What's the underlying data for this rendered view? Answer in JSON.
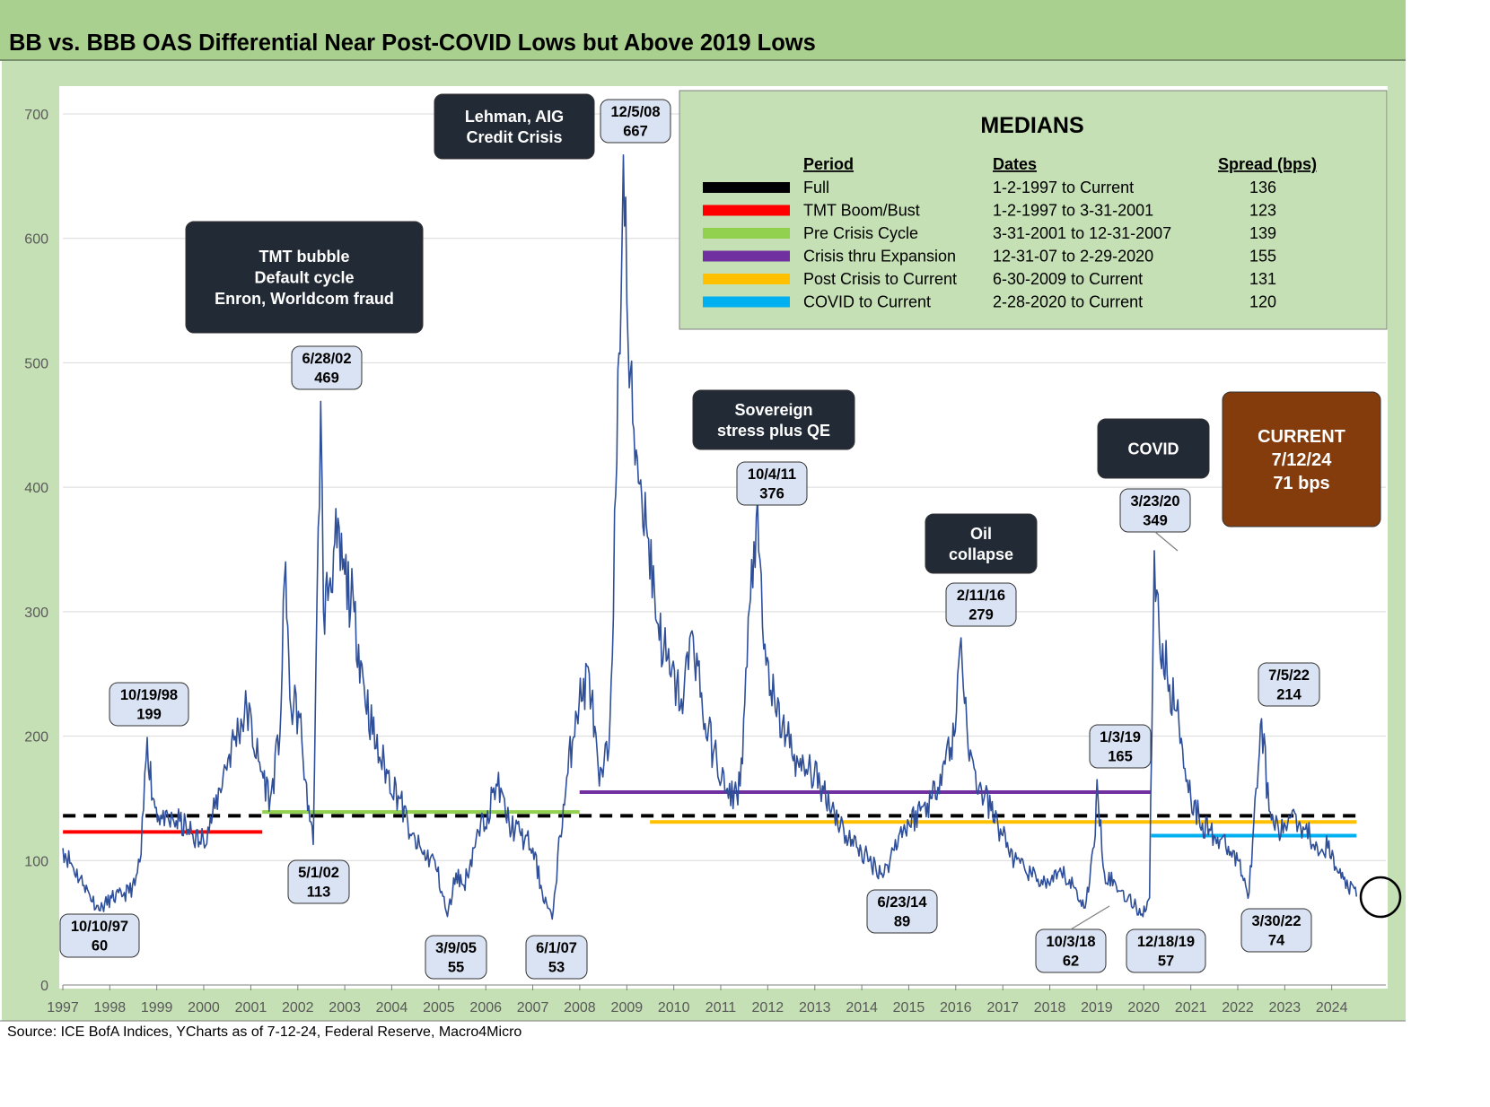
{
  "header": {
    "title": "BB vs. BBB OAS Differential Near Post-COVID Lows but Above 2019 Lows",
    "source": "Source: ICE BofA Indices, YCharts as of 7-12-24, Federal Reserve, Macro4Micro"
  },
  "colors": {
    "header_bg": "#a9d08e",
    "plot_bg": "#c5e0b4",
    "series": "#2f4f99",
    "dark_box": "#222a35",
    "label_box": "#dae3f3",
    "current_box": "#843c0c"
  },
  "chart_data": {
    "type": "line",
    "title": "BB vs. BBB OAS Differential Near Post-COVID Lows but Above 2019 Lows",
    "xlabel": "",
    "ylabel": "",
    "ylim": [
      0,
      700
    ],
    "yticks": [
      "0",
      "100",
      "200",
      "300",
      "400",
      "500",
      "600",
      "700"
    ],
    "xticks": [
      "1997",
      "1998",
      "1999",
      "2000",
      "2001",
      "2002",
      "2003",
      "2004",
      "2005",
      "2006",
      "2007",
      "2008",
      "2009",
      "2010",
      "2011",
      "2012",
      "2013",
      "2014",
      "2015",
      "2016",
      "2017",
      "2018",
      "2019",
      "2020",
      "2021",
      "2022",
      "2023",
      "2024"
    ],
    "grid": "horizontal",
    "series": [
      {
        "name": "",
        "color": "#2f4f99",
        "points": [
          [
            "1997-01-02",
            110
          ],
          [
            "1997-03-15",
            96
          ],
          [
            "1997-06-15",
            80
          ],
          [
            "1997-10-10",
            60
          ],
          [
            "1998-01-15",
            70
          ],
          [
            "1998-04-15",
            72
          ],
          [
            "1998-07-15",
            80
          ],
          [
            "1998-09-01",
            105
          ],
          [
            "1998-10-19",
            199
          ],
          [
            "1998-12-01",
            150
          ],
          [
            "1999-03-01",
            128
          ],
          [
            "1999-06-01",
            132
          ],
          [
            "1999-09-01",
            125
          ],
          [
            "1999-12-01",
            115
          ],
          [
            "2000-03-01",
            130
          ],
          [
            "2000-06-01",
            170
          ],
          [
            "2000-09-01",
            200
          ],
          [
            "2000-12-01",
            222
          ],
          [
            "2001-03-01",
            180
          ],
          [
            "2001-06-01",
            150
          ],
          [
            "2001-08-15",
            200
          ],
          [
            "2001-09-28",
            340
          ],
          [
            "2001-11-01",
            230
          ],
          [
            "2002-01-15",
            215
          ],
          [
            "2002-03-01",
            165
          ],
          [
            "2002-05-01",
            113
          ],
          [
            "2002-06-28",
            469
          ],
          [
            "2002-07-20",
            300
          ],
          [
            "2002-09-01",
            320
          ],
          [
            "2002-10-15",
            355
          ],
          [
            "2003-01-01",
            330
          ],
          [
            "2003-03-15",
            300
          ],
          [
            "2003-06-01",
            240
          ],
          [
            "2003-09-01",
            190
          ],
          [
            "2003-12-01",
            170
          ],
          [
            "2004-03-01",
            150
          ],
          [
            "2004-06-01",
            120
          ],
          [
            "2004-09-01",
            105
          ],
          [
            "2004-12-01",
            100
          ],
          [
            "2005-03-09",
            55
          ],
          [
            "2005-05-15",
            90
          ],
          [
            "2005-07-15",
            80
          ],
          [
            "2005-10-01",
            110
          ],
          [
            "2006-01-15",
            140
          ],
          [
            "2006-04-01",
            160
          ],
          [
            "2006-07-01",
            130
          ],
          [
            "2006-10-01",
            120
          ],
          [
            "2007-01-01",
            110
          ],
          [
            "2007-03-15",
            75
          ],
          [
            "2007-06-01",
            53
          ],
          [
            "2007-08-01",
            120
          ],
          [
            "2007-10-01",
            170
          ],
          [
            "2007-12-01",
            220
          ],
          [
            "2008-03-15",
            250
          ],
          [
            "2008-06-01",
            160
          ],
          [
            "2008-08-15",
            190
          ],
          [
            "2008-10-15",
            420
          ],
          [
            "2008-12-05",
            667
          ],
          [
            "2009-01-20",
            480
          ],
          [
            "2009-03-15",
            430
          ],
          [
            "2009-06-01",
            370
          ],
          [
            "2009-09-01",
            290
          ],
          [
            "2009-12-01",
            250
          ],
          [
            "2010-03-01",
            230
          ],
          [
            "2010-06-01",
            280
          ],
          [
            "2010-09-01",
            210
          ],
          [
            "2010-12-01",
            180
          ],
          [
            "2011-03-01",
            150
          ],
          [
            "2011-06-01",
            160
          ],
          [
            "2011-08-20",
            310
          ],
          [
            "2011-10-04",
            376
          ],
          [
            "2011-12-01",
            270
          ],
          [
            "2012-03-01",
            220
          ],
          [
            "2012-06-01",
            200
          ],
          [
            "2012-09-01",
            175
          ],
          [
            "2012-12-01",
            170
          ],
          [
            "2013-03-01",
            160
          ],
          [
            "2013-06-01",
            140
          ],
          [
            "2013-09-01",
            120
          ],
          [
            "2013-12-01",
            110
          ],
          [
            "2014-03-01",
            100
          ],
          [
            "2014-06-23",
            89
          ],
          [
            "2014-10-15",
            120
          ],
          [
            "2015-01-01",
            130
          ],
          [
            "2015-04-01",
            140
          ],
          [
            "2015-07-01",
            150
          ],
          [
            "2015-10-01",
            180
          ],
          [
            "2015-12-20",
            200
          ],
          [
            "2016-02-11",
            279
          ],
          [
            "2016-04-15",
            180
          ],
          [
            "2016-07-01",
            160
          ],
          [
            "2016-10-01",
            140
          ],
          [
            "2017-01-01",
            120
          ],
          [
            "2017-04-01",
            100
          ],
          [
            "2017-07-01",
            90
          ],
          [
            "2017-10-01",
            85
          ],
          [
            "2018-01-01",
            80
          ],
          [
            "2018-04-01",
            90
          ],
          [
            "2018-07-01",
            80
          ],
          [
            "2018-10-03",
            62
          ],
          [
            "2018-12-20",
            120
          ],
          [
            "2019-01-03",
            165
          ],
          [
            "2019-03-01",
            90
          ],
          [
            "2019-06-01",
            80
          ],
          [
            "2019-09-01",
            70
          ],
          [
            "2019-12-18",
            57
          ],
          [
            "2020-02-15",
            70
          ],
          [
            "2020-03-23",
            349
          ],
          [
            "2020-05-01",
            280
          ],
          [
            "2020-07-01",
            250
          ],
          [
            "2020-10-01",
            210
          ],
          [
            "2021-01-01",
            150
          ],
          [
            "2021-04-01",
            130
          ],
          [
            "2021-07-01",
            120
          ],
          [
            "2021-10-01",
            110
          ],
          [
            "2022-01-01",
            100
          ],
          [
            "2022-03-30",
            74
          ],
          [
            "2022-05-15",
            150
          ],
          [
            "2022-07-05",
            214
          ],
          [
            "2022-09-01",
            140
          ],
          [
            "2022-12-01",
            120
          ],
          [
            "2023-03-01",
            140
          ],
          [
            "2023-06-01",
            125
          ],
          [
            "2023-09-01",
            115
          ],
          [
            "2023-12-01",
            110
          ],
          [
            "2024-02-01",
            95
          ],
          [
            "2024-04-01",
            85
          ],
          [
            "2024-07-12",
            71
          ]
        ]
      }
    ],
    "median_lines": [
      {
        "period": "Full",
        "value": 136,
        "color": "#000000",
        "dashed": true,
        "start": "1997-01-02",
        "end": "2024-07-12"
      },
      {
        "period": "TMT Boom/Bust",
        "value": 123,
        "color": "#ff0000",
        "dashed": false,
        "start": "1997-01-02",
        "end": "2001-03-31"
      },
      {
        "period": "Pre Crisis Cycle",
        "value": 139,
        "color": "#92d050",
        "dashed": false,
        "start": "2001-03-31",
        "end": "2007-12-31"
      },
      {
        "period": "Crisis thru Expansion",
        "value": 155,
        "color": "#7030a0",
        "dashed": false,
        "start": "2007-12-31",
        "end": "2020-02-29"
      },
      {
        "period": "Post Crisis to Current",
        "value": 131,
        "color": "#ffc000",
        "dashed": false,
        "start": "2009-06-30",
        "end": "2024-07-12"
      },
      {
        "period": "COVID to Current",
        "value": 120,
        "color": "#00b0f0",
        "dashed": false,
        "start": "2020-02-28",
        "end": "2024-07-12"
      }
    ],
    "point_labels": [
      {
        "date": "10/10/97",
        "value": "60"
      },
      {
        "date": "10/19/98",
        "value": "199"
      },
      {
        "date": "6/28/02",
        "value": "469"
      },
      {
        "date": "5/1/02",
        "value": "113"
      },
      {
        "date": "3/9/05",
        "value": "55"
      },
      {
        "date": "6/1/07",
        "value": "53"
      },
      {
        "date": "12/5/08",
        "value": "667"
      },
      {
        "date": "10/4/11",
        "value": "376"
      },
      {
        "date": "6/23/14",
        "value": "89"
      },
      {
        "date": "2/11/16",
        "value": "279"
      },
      {
        "date": "10/3/18",
        "value": "62"
      },
      {
        "date": "1/3/19",
        "value": "165"
      },
      {
        "date": "12/18/19",
        "value": "57"
      },
      {
        "date": "3/23/20",
        "value": "349"
      },
      {
        "date": "3/30/22",
        "value": "74"
      },
      {
        "date": "7/5/22",
        "value": "214"
      }
    ],
    "event_labels": [
      {
        "lines": [
          "Lehman, AIG",
          "Credit Crisis"
        ]
      },
      {
        "lines": [
          "TMT bubble",
          "Default cycle",
          "Enron, Worldcom fraud"
        ]
      },
      {
        "lines": [
          "Sovereign",
          "stress plus QE"
        ]
      },
      {
        "lines": [
          "Oil",
          "collapse"
        ]
      },
      {
        "lines": [
          "COVID"
        ]
      }
    ],
    "current": {
      "lines": [
        "CURRENT",
        "7/12/24",
        "71 bps"
      ]
    },
    "medians_table": {
      "title": "MEDIANS",
      "headers": [
        "Period",
        "Dates",
        "Spread (bps)"
      ],
      "rows": [
        {
          "period": "Full",
          "dates": "1-2-1997 to Current",
          "spread": "136",
          "color": "#000000"
        },
        {
          "period": "TMT Boom/Bust",
          "dates": "1-2-1997 to 3-31-2001",
          "spread": "123",
          "color": "#ff0000"
        },
        {
          "period": "Pre Crisis Cycle",
          "dates": "3-31-2001 to 12-31-2007",
          "spread": "139",
          "color": "#92d050"
        },
        {
          "period": "Crisis thru Expansion",
          "dates": "12-31-07 to 2-29-2020",
          "spread": "155",
          "color": "#7030a0"
        },
        {
          "period": "Post Crisis to Current",
          "dates": "6-30-2009 to Current",
          "spread": "131",
          "color": "#ffc000"
        },
        {
          "period": "COVID to Current",
          "dates": "2-28-2020 to Current",
          "spread": "120",
          "color": "#00b0f0"
        }
      ]
    }
  }
}
